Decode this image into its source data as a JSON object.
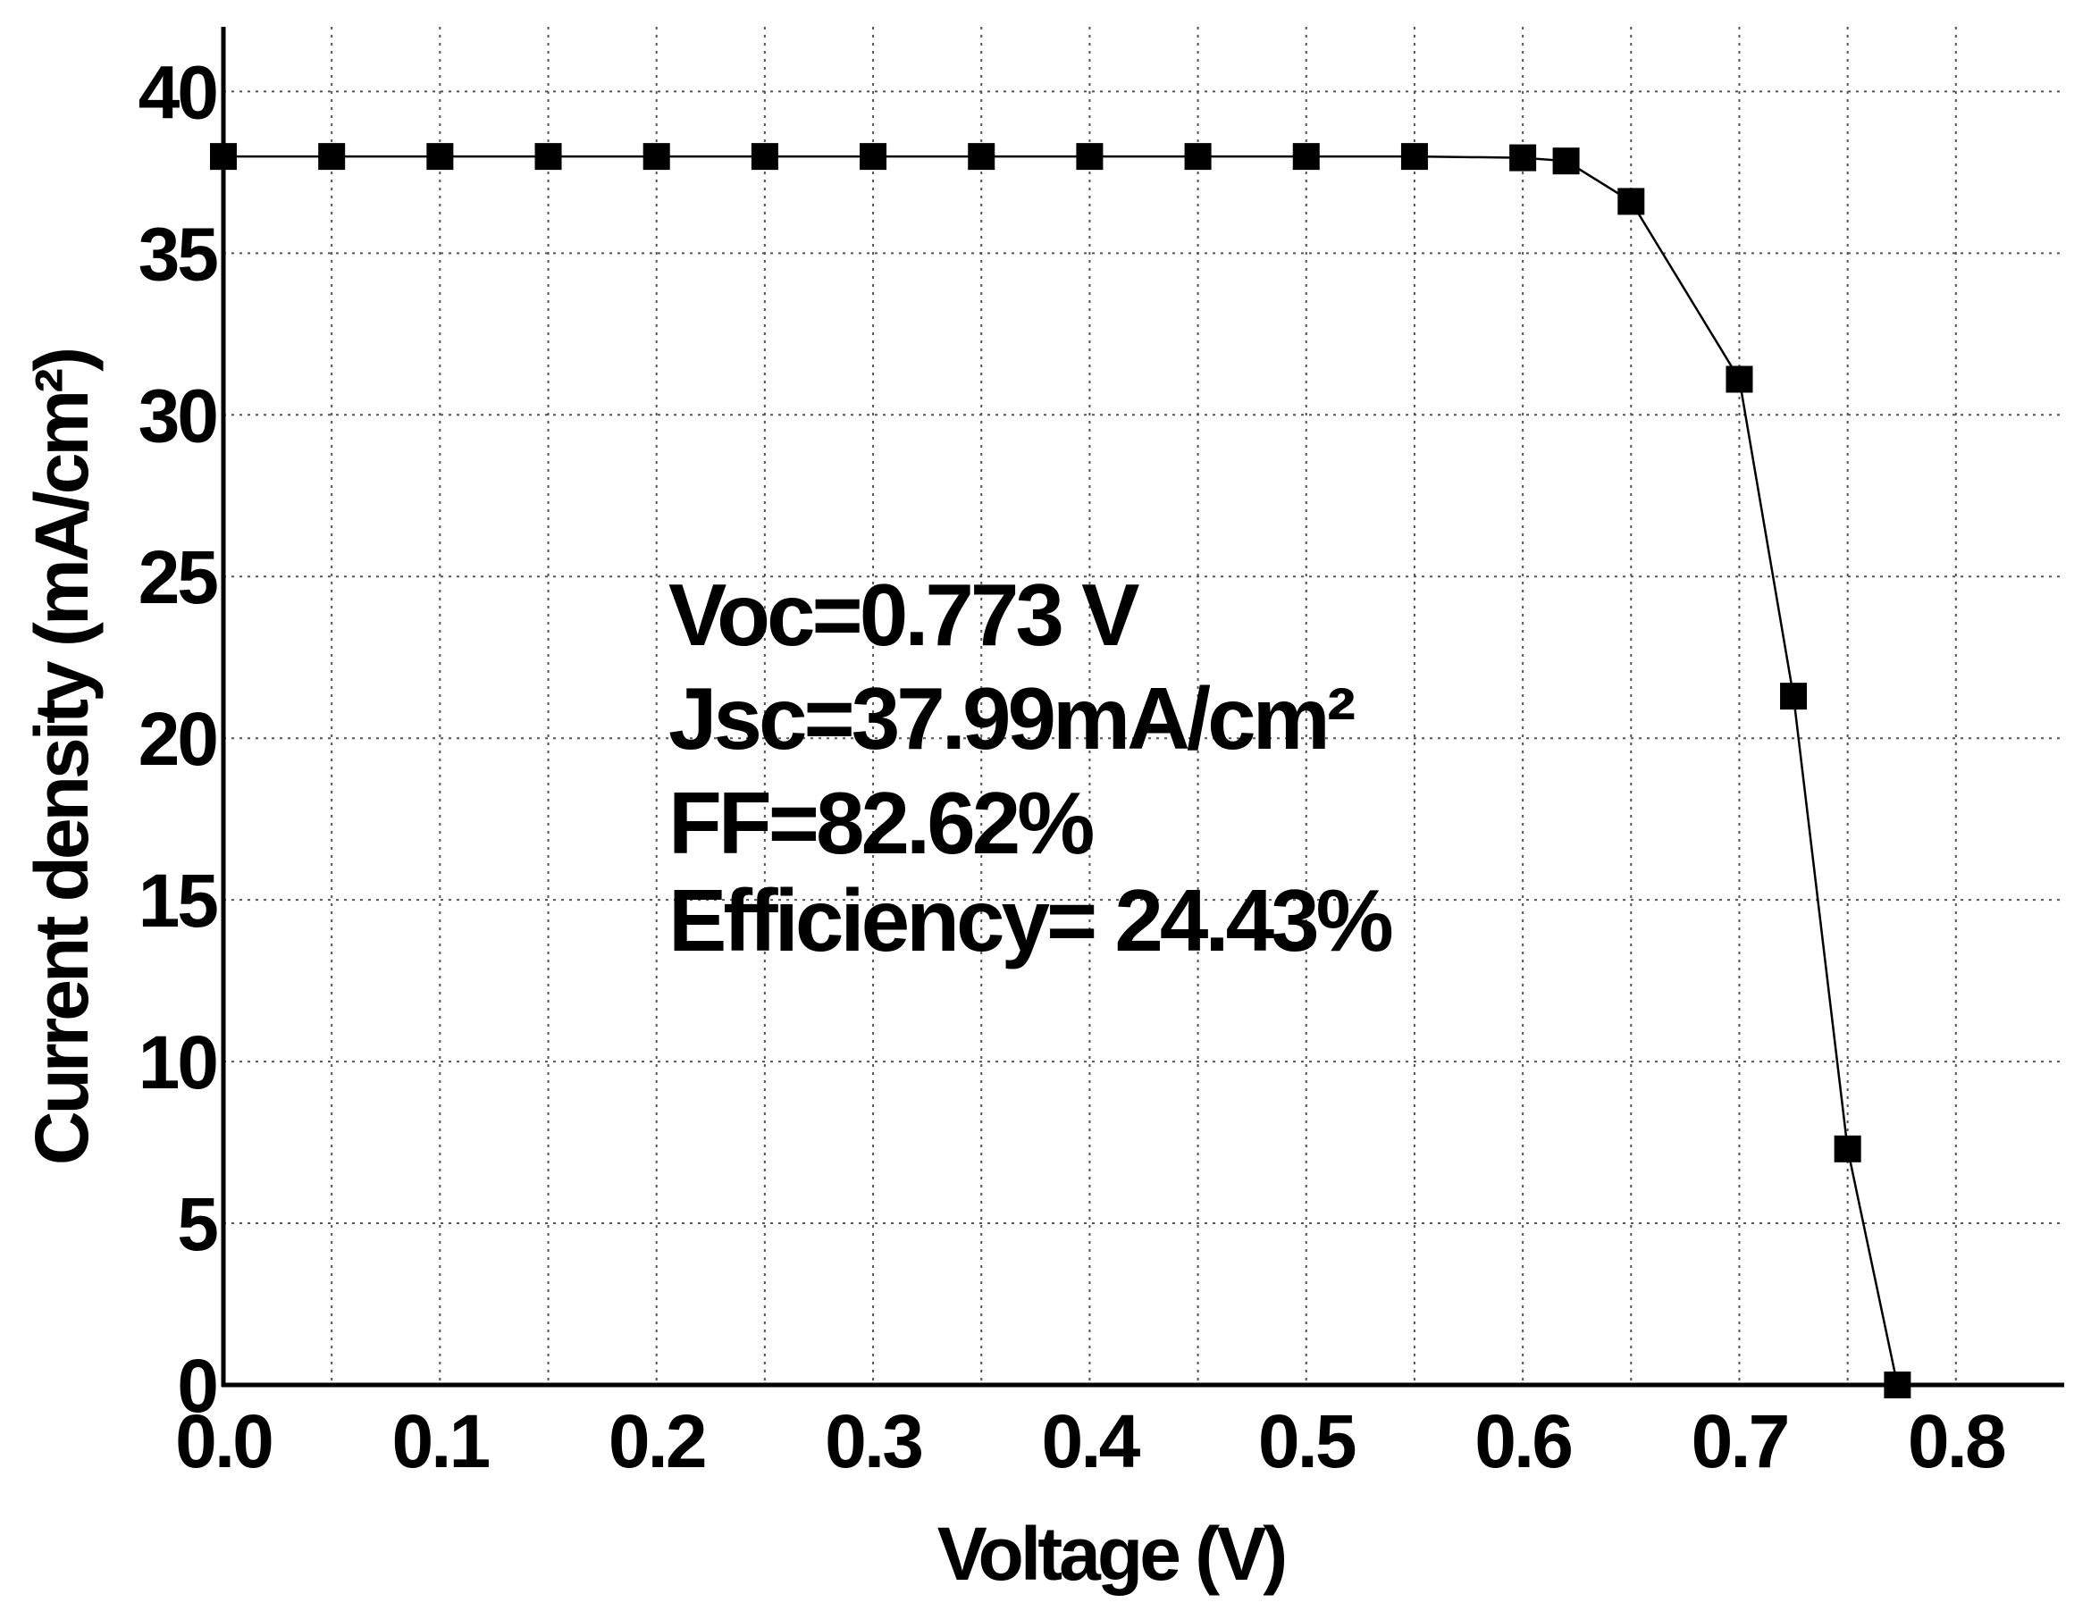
{
  "chart_data": {
    "type": "line",
    "title": "",
    "xlabel": "Voltage (V)",
    "ylabel": "Current density (mA/cm²)",
    "xlim": [
      0.0,
      0.85
    ],
    "ylim": [
      0,
      42
    ],
    "x_ticks": [
      "0.0",
      "0.1",
      "0.2",
      "0.3",
      "0.4",
      "0.5",
      "0.6",
      "0.7",
      "0.8"
    ],
    "y_ticks": [
      "0",
      "5",
      "10",
      "15",
      "20",
      "25",
      "30",
      "35",
      "40"
    ],
    "grid": true,
    "marker": "square",
    "color": "#000000",
    "series": [
      {
        "x": [
          0.0,
          0.05,
          0.1,
          0.15,
          0.2,
          0.25,
          0.3,
          0.35,
          0.4,
          0.45,
          0.5,
          0.55,
          0.6,
          0.62,
          0.65,
          0.7,
          0.725,
          0.75,
          0.773
        ],
        "values": [
          37.99,
          37.99,
          37.99,
          37.99,
          37.99,
          37.99,
          37.99,
          37.99,
          37.99,
          37.99,
          37.99,
          37.99,
          37.95,
          37.85,
          36.6,
          31.1,
          21.3,
          7.3,
          0
        ]
      }
    ],
    "annotations": [
      "Voc=0.773 V",
      "Jsc=37.99mA/cm²",
      "FF=82.62%",
      "Efficiency= 24.43%"
    ]
  }
}
